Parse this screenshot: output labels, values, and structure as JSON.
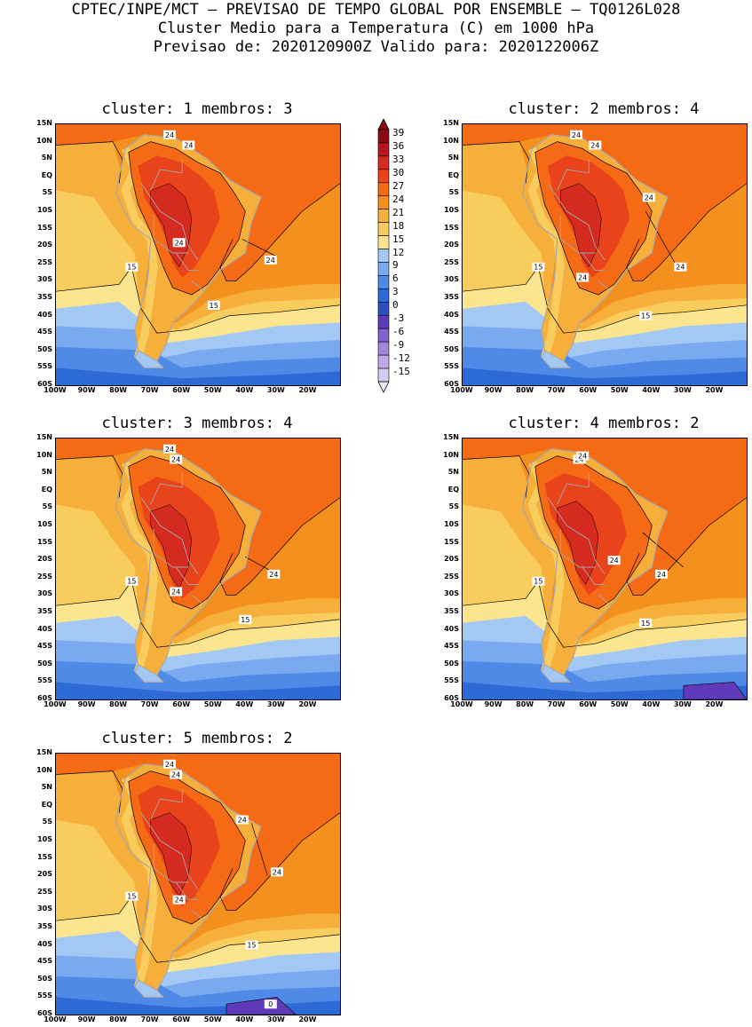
{
  "header": {
    "line1": "CPTEC/INPE/MCT – PREVISAO DE TEMPO GLOBAL POR ENSEMBLE – TQ0126L028",
    "line2": "Cluster Medio para a Temperatura (C) em 1000 hPa",
    "line3": "Previsao de: 2020120900Z   Valido para: 2020122006Z"
  },
  "lat_labels": [
    "15N",
    "10N",
    "5N",
    "EQ",
    "5S",
    "10S",
    "15S",
    "20S",
    "25S",
    "30S",
    "35S",
    "40S",
    "45S",
    "50S",
    "55S",
    "60S"
  ],
  "lon_labels": [
    "100W",
    "90W",
    "80W",
    "70W",
    "60W",
    "50W",
    "40W",
    "30W",
    "20W"
  ],
  "colorbar": {
    "labels": [
      "39",
      "36",
      "33",
      "30",
      "27",
      "24",
      "21",
      "18",
      "15",
      "12",
      "9",
      "6",
      "3",
      "0",
      "-3",
      "-6",
      "-9",
      "-12",
      "-15"
    ],
    "colors": [
      "#8b0a14",
      "#b5151e",
      "#d42a1f",
      "#e8431b",
      "#f56a14",
      "#f4901e",
      "#f6af3a",
      "#f9cc5e",
      "#fbe58e",
      "#a4c8f4",
      "#79aaef",
      "#4f8ae6",
      "#2e6ad6",
      "#2e4fc0",
      "#5e3ab8",
      "#7f63cc",
      "#9f88dc",
      "#bdaae6",
      "#d8cbf0"
    ]
  },
  "panels": [
    {
      "title": "cluster: 1   membros: 3",
      "labels_24": [
        "24",
        "24",
        "24",
        "24"
      ],
      "label_15": [
        "15",
        "15"
      ]
    },
    {
      "title": "cluster: 2   membros: 4",
      "labels_24": [
        "24",
        "24",
        "24",
        "24",
        "24"
      ],
      "label_15": [
        "15",
        "15"
      ]
    },
    {
      "title": "cluster: 3   membros: 4",
      "labels_24": [
        "24",
        "24",
        "24",
        "24"
      ],
      "label_15": [
        "15",
        "15"
      ]
    },
    {
      "title": "cluster: 4   membros: 2",
      "labels_24": [
        "24",
        "24",
        "24",
        "24"
      ],
      "label_15": [
        "15",
        "15"
      ]
    },
    {
      "title": "cluster: 5   membros: 2",
      "labels_24": [
        "24",
        "24",
        "24",
        "24",
        "24"
      ],
      "label_15": [
        "15",
        "15"
      ],
      "label_0": "0"
    }
  ]
}
